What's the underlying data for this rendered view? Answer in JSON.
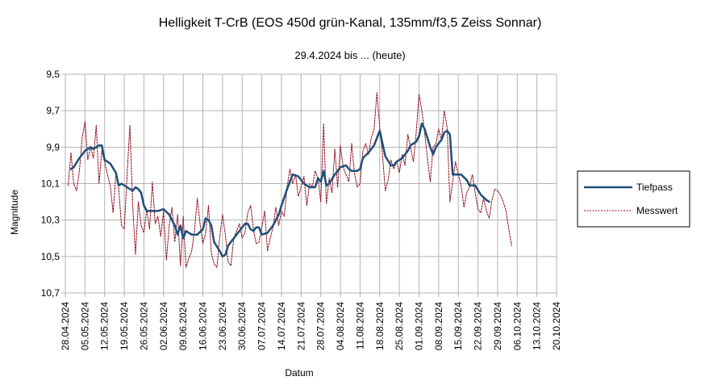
{
  "chart_data": {
    "type": "line",
    "title": "Helligkeit T-CrB (EOS 450d grün-Kanal, 135mm/f3,5 Zeiss Sonnar)",
    "subtitle": "29.4.2024 bis ... (heute)",
    "xlabel": "Datum",
    "ylabel": "Magnitude",
    "ylim": [
      9.5,
      10.7
    ],
    "y_inverted": true,
    "y_ticks": [
      "9,5",
      "9,7",
      "9,9",
      "10,1",
      "10,3",
      "10,5",
      "10,7"
    ],
    "x_ticks": [
      "28.04.2024",
      "05.05.2024",
      "12.05.2024",
      "19.05.2024",
      "26.05.2024",
      "02.06.2024",
      "09.06.2024",
      "16.06.2024",
      "23.06.2024",
      "30.06.2024",
      "07.07.2024",
      "14.07.2024",
      "21.07.2024",
      "28.07.2024",
      "04.08.2024",
      "11.08.2024",
      "18.08.2024",
      "25.08.2024",
      "01.09.2024",
      "08.09.2024",
      "15.09.2024",
      "22.09.2024",
      "29.09.2024",
      "06.10.2024",
      "13.10.2024",
      "20.10.2024"
    ],
    "x_range": [
      "28.04.2024",
      "20.10.2024"
    ],
    "grid": true,
    "legend_position": "right",
    "series": [
      {
        "name": "Tiefpass",
        "color": "#1f4e79",
        "style": "solid",
        "points": [
          [
            "30.04.2024",
            10.02
          ],
          [
            "01.05.2024",
            10.01
          ],
          [
            "03.05.2024",
            9.96
          ],
          [
            "05.05.2024",
            9.92
          ],
          [
            "07.05.2024",
            9.9
          ],
          [
            "08.05.2024",
            9.91
          ],
          [
            "10.05.2024",
            9.89
          ],
          [
            "11.05.2024",
            9.89
          ],
          [
            "12.05.2024",
            9.97
          ],
          [
            "14.05.2024",
            9.99
          ],
          [
            "16.05.2024",
            10.04
          ],
          [
            "17.05.2024",
            10.11
          ],
          [
            "18.05.2024",
            10.1
          ],
          [
            "20.05.2024",
            10.12
          ],
          [
            "22.05.2024",
            10.14
          ],
          [
            "23.05.2024",
            10.12
          ],
          [
            "24.05.2024",
            10.13
          ],
          [
            "25.05.2024",
            10.15
          ],
          [
            "26.05.2024",
            10.22
          ],
          [
            "27.05.2024",
            10.25
          ],
          [
            "29.05.2024",
            10.25
          ],
          [
            "31.05.2024",
            10.25
          ],
          [
            "02.06.2024",
            10.24
          ],
          [
            "04.06.2024",
            10.27
          ],
          [
            "05.06.2024",
            10.3
          ],
          [
            "06.06.2024",
            10.33
          ],
          [
            "07.06.2024",
            10.38
          ],
          [
            "08.06.2024",
            10.33
          ],
          [
            "09.06.2024",
            10.4
          ],
          [
            "10.06.2024",
            10.36
          ],
          [
            "12.06.2024",
            10.38
          ],
          [
            "14.06.2024",
            10.38
          ],
          [
            "16.06.2024",
            10.35
          ],
          [
            "17.06.2024",
            10.29
          ],
          [
            "18.06.2024",
            10.3
          ],
          [
            "19.06.2024",
            10.33
          ],
          [
            "20.06.2024",
            10.42
          ],
          [
            "22.06.2024",
            10.47
          ],
          [
            "23.06.2024",
            10.5
          ],
          [
            "24.06.2024",
            10.49
          ],
          [
            "25.06.2024",
            10.44
          ],
          [
            "27.06.2024",
            10.4
          ],
          [
            "29.06.2024",
            10.36
          ],
          [
            "01.07.2024",
            10.32
          ],
          [
            "02.07.2024",
            10.32
          ],
          [
            "03.07.2024",
            10.35
          ],
          [
            "04.07.2024",
            10.36
          ],
          [
            "05.07.2024",
            10.34
          ],
          [
            "06.07.2024",
            10.34
          ],
          [
            "07.07.2024",
            10.38
          ],
          [
            "09.07.2024",
            10.37
          ],
          [
            "11.07.2024",
            10.33
          ],
          [
            "13.07.2024",
            10.27
          ],
          [
            "14.07.2024",
            10.22
          ],
          [
            "16.07.2024",
            10.13
          ],
          [
            "18.07.2024",
            10.05
          ],
          [
            "20.07.2024",
            10.06
          ],
          [
            "22.07.2024",
            10.1
          ],
          [
            "24.07.2024",
            10.12
          ],
          [
            "26.07.2024",
            10.12
          ],
          [
            "27.07.2024",
            10.07
          ],
          [
            "28.07.2024",
            10.09
          ],
          [
            "29.07.2024",
            10.03
          ],
          [
            "30.07.2024",
            10.11
          ],
          [
            "31.07.2024",
            10.1
          ],
          [
            "02.08.2024",
            10.05
          ],
          [
            "04.08.2024",
            10.01
          ],
          [
            "06.08.2024",
            10.0
          ],
          [
            "07.08.2024",
            10.02
          ],
          [
            "08.08.2024",
            10.03
          ],
          [
            "10.08.2024",
            10.03
          ],
          [
            "11.08.2024",
            10.02
          ],
          [
            "12.08.2024",
            9.96
          ],
          [
            "14.08.2024",
            9.93
          ],
          [
            "16.08.2024",
            9.89
          ],
          [
            "17.08.2024",
            9.85
          ],
          [
            "18.08.2024",
            9.81
          ],
          [
            "19.08.2024",
            9.88
          ],
          [
            "20.08.2024",
            9.95
          ],
          [
            "22.08.2024",
            10.0
          ],
          [
            "23.08.2024",
            10.0
          ],
          [
            "24.08.2024",
            9.98
          ],
          [
            "26.08.2024",
            9.96
          ],
          [
            "28.08.2024",
            9.92
          ],
          [
            "29.08.2024",
            9.89
          ],
          [
            "31.08.2024",
            9.87
          ],
          [
            "01.09.2024",
            9.84
          ],
          [
            "02.09.2024",
            9.77
          ],
          [
            "03.09.2024",
            9.8
          ],
          [
            "05.09.2024",
            9.9
          ],
          [
            "06.09.2024",
            9.94
          ],
          [
            "07.09.2024",
            9.9
          ],
          [
            "09.09.2024",
            9.86
          ],
          [
            "10.09.2024",
            9.82
          ],
          [
            "11.09.2024",
            9.81
          ],
          [
            "12.09.2024",
            9.83
          ],
          [
            "13.09.2024",
            10.05
          ],
          [
            "14.09.2024",
            10.05
          ],
          [
            "16.09.2024",
            10.05
          ],
          [
            "18.09.2024",
            10.08
          ],
          [
            "19.09.2024",
            10.11
          ],
          [
            "21.09.2024",
            10.11
          ],
          [
            "23.09.2024",
            10.16
          ],
          [
            "25.09.2024",
            10.19
          ],
          [
            "26.09.2024",
            10.2
          ]
        ]
      },
      {
        "name": "Messwert",
        "color": "#8b0a1a",
        "style": "dashed",
        "points": [
          [
            "29.04.2024",
            10.11
          ],
          [
            "30.04.2024",
            9.93
          ],
          [
            "01.05.2024",
            10.1
          ],
          [
            "02.05.2024",
            10.14
          ],
          [
            "03.05.2024",
            10.03
          ],
          [
            "04.05.2024",
            9.85
          ],
          [
            "05.05.2024",
            9.76
          ],
          [
            "06.05.2024",
            9.97
          ],
          [
            "07.05.2024",
            9.9
          ],
          [
            "08.05.2024",
            9.96
          ],
          [
            "09.05.2024",
            9.78
          ],
          [
            "10.05.2024",
            10.1
          ],
          [
            "11.05.2024",
            9.92
          ],
          [
            "12.05.2024",
            9.98
          ],
          [
            "13.05.2024",
            10.05
          ],
          [
            "14.05.2024",
            10.11
          ],
          [
            "15.05.2024",
            10.26
          ],
          [
            "16.05.2024",
            10.05
          ],
          [
            "17.05.2024",
            10.12
          ],
          [
            "18.05.2024",
            10.33
          ],
          [
            "19.05.2024",
            10.35
          ],
          [
            "20.05.2024",
            10.05
          ],
          [
            "21.05.2024",
            9.78
          ],
          [
            "22.05.2024",
            10.22
          ],
          [
            "23.05.2024",
            10.49
          ],
          [
            "24.05.2024",
            10.2
          ],
          [
            "25.05.2024",
            10.33
          ],
          [
            "26.05.2024",
            10.37
          ],
          [
            "27.05.2024",
            10.24
          ],
          [
            "28.05.2024",
            10.35
          ],
          [
            "29.05.2024",
            10.09
          ],
          [
            "30.05.2024",
            10.32
          ],
          [
            "31.05.2024",
            10.28
          ],
          [
            "01.06.2024",
            10.39
          ],
          [
            "02.06.2024",
            10.25
          ],
          [
            "03.06.2024",
            10.52
          ],
          [
            "04.06.2024",
            10.33
          ],
          [
            "05.06.2024",
            10.23
          ],
          [
            "06.06.2024",
            10.42
          ],
          [
            "07.06.2024",
            10.27
          ],
          [
            "08.06.2024",
            10.55
          ],
          [
            "09.06.2024",
            10.28
          ],
          [
            "10.06.2024",
            10.56
          ],
          [
            "11.06.2024",
            10.51
          ],
          [
            "12.06.2024",
            10.47
          ],
          [
            "13.06.2024",
            10.36
          ],
          [
            "14.06.2024",
            10.18
          ],
          [
            "15.06.2024",
            10.32
          ],
          [
            "16.06.2024",
            10.43
          ],
          [
            "17.06.2024",
            10.37
          ],
          [
            "18.06.2024",
            10.22
          ],
          [
            "19.06.2024",
            10.48
          ],
          [
            "20.06.2024",
            10.54
          ],
          [
            "21.06.2024",
            10.56
          ],
          [
            "22.06.2024",
            10.39
          ],
          [
            "23.06.2024",
            10.27
          ],
          [
            "24.06.2024",
            10.38
          ],
          [
            "25.06.2024",
            10.53
          ],
          [
            "26.06.2024",
            10.55
          ],
          [
            "27.06.2024",
            10.4
          ],
          [
            "28.06.2024",
            10.36
          ],
          [
            "29.06.2024",
            10.32
          ],
          [
            "30.06.2024",
            10.4
          ],
          [
            "01.07.2024",
            10.37
          ],
          [
            "02.07.2024",
            10.26
          ],
          [
            "03.07.2024",
            10.22
          ],
          [
            "04.07.2024",
            10.35
          ],
          [
            "05.07.2024",
            10.43
          ],
          [
            "06.07.2024",
            10.42
          ],
          [
            "07.07.2024",
            10.34
          ],
          [
            "08.07.2024",
            10.25
          ],
          [
            "09.07.2024",
            10.47
          ],
          [
            "10.07.2024",
            10.4
          ],
          [
            "11.07.2024",
            10.34
          ],
          [
            "12.07.2024",
            10.23
          ],
          [
            "13.07.2024",
            10.33
          ],
          [
            "14.07.2024",
            10.25
          ],
          [
            "15.07.2024",
            10.28
          ],
          [
            "16.07.2024",
            10.12
          ],
          [
            "17.07.2024",
            10.02
          ],
          [
            "18.07.2024",
            10.1
          ],
          [
            "19.07.2024",
            10.05
          ],
          [
            "20.07.2024",
            10.17
          ],
          [
            "21.07.2024",
            10.12
          ],
          [
            "22.07.2024",
            10.06
          ],
          [
            "23.07.2024",
            10.22
          ],
          [
            "24.07.2024",
            10.1
          ],
          [
            "25.07.2024",
            10.12
          ],
          [
            "26.07.2024",
            10.03
          ],
          [
            "27.07.2024",
            10.07
          ],
          [
            "28.07.2024",
            10.2
          ],
          [
            "29.07.2024",
            9.77
          ],
          [
            "30.07.2024",
            10.21
          ],
          [
            "31.07.2024",
            10.07
          ],
          [
            "01.08.2024",
            10.15
          ],
          [
            "02.08.2024",
            9.91
          ],
          [
            "03.08.2024",
            10.12
          ],
          [
            "04.08.2024",
            9.89
          ],
          [
            "05.08.2024",
            10.01
          ],
          [
            "06.08.2024",
            10.05
          ],
          [
            "07.08.2024",
            10.09
          ],
          [
            "08.08.2024",
            9.88
          ],
          [
            "09.08.2024",
            10.04
          ],
          [
            "10.08.2024",
            10.12
          ],
          [
            "11.08.2024",
            10.1
          ],
          [
            "12.08.2024",
            9.92
          ],
          [
            "13.08.2024",
            9.88
          ],
          [
            "14.08.2024",
            9.94
          ],
          [
            "15.08.2024",
            9.85
          ],
          [
            "16.08.2024",
            9.8
          ],
          [
            "17.08.2024",
            9.6
          ],
          [
            "18.08.2024",
            9.79
          ],
          [
            "19.08.2024",
            9.94
          ],
          [
            "20.08.2024",
            10.14
          ],
          [
            "21.08.2024",
            10.08
          ],
          [
            "22.08.2024",
            9.97
          ],
          [
            "23.08.2024",
            10.02
          ],
          [
            "24.08.2024",
            9.98
          ],
          [
            "25.08.2024",
            10.04
          ],
          [
            "26.08.2024",
            9.94
          ],
          [
            "27.08.2024",
            10.0
          ],
          [
            "28.08.2024",
            9.83
          ],
          [
            "29.08.2024",
            9.9
          ],
          [
            "30.08.2024",
            9.98
          ],
          [
            "31.08.2024",
            9.82
          ],
          [
            "01.09.2024",
            9.61
          ],
          [
            "02.09.2024",
            9.7
          ],
          [
            "03.09.2024",
            9.82
          ],
          [
            "04.09.2024",
            9.96
          ],
          [
            "05.09.2024",
            10.09
          ],
          [
            "06.09.2024",
            9.9
          ],
          [
            "07.09.2024",
            9.88
          ],
          [
            "08.09.2024",
            9.8
          ],
          [
            "09.09.2024",
            9.86
          ],
          [
            "10.09.2024",
            9.7
          ],
          [
            "11.09.2024",
            9.79
          ],
          [
            "12.09.2024",
            10.2
          ],
          [
            "13.09.2024",
            10.09
          ],
          [
            "14.09.2024",
            9.98
          ],
          [
            "15.09.2024",
            10.05
          ],
          [
            "16.09.2024",
            10.11
          ],
          [
            "17.09.2024",
            10.23
          ],
          [
            "18.09.2024",
            10.15
          ],
          [
            "19.09.2024",
            10.12
          ],
          [
            "20.09.2024",
            10.05
          ],
          [
            "21.09.2024",
            10.15
          ],
          [
            "22.09.2024",
            10.24
          ],
          [
            "23.09.2024",
            10.26
          ],
          [
            "24.09.2024",
            10.18
          ],
          [
            "25.09.2024",
            10.25
          ],
          [
            "26.09.2024",
            10.29
          ],
          [
            "27.09.2024",
            10.19
          ],
          [
            "28.09.2024",
            10.13
          ],
          [
            "29.09.2024",
            10.14
          ],
          [
            "30.09.2024",
            10.16
          ],
          [
            "01.10.2024",
            10.2
          ],
          [
            "02.10.2024",
            10.25
          ],
          [
            "03.10.2024",
            10.35
          ],
          [
            "04.10.2024",
            10.44
          ]
        ]
      }
    ]
  }
}
